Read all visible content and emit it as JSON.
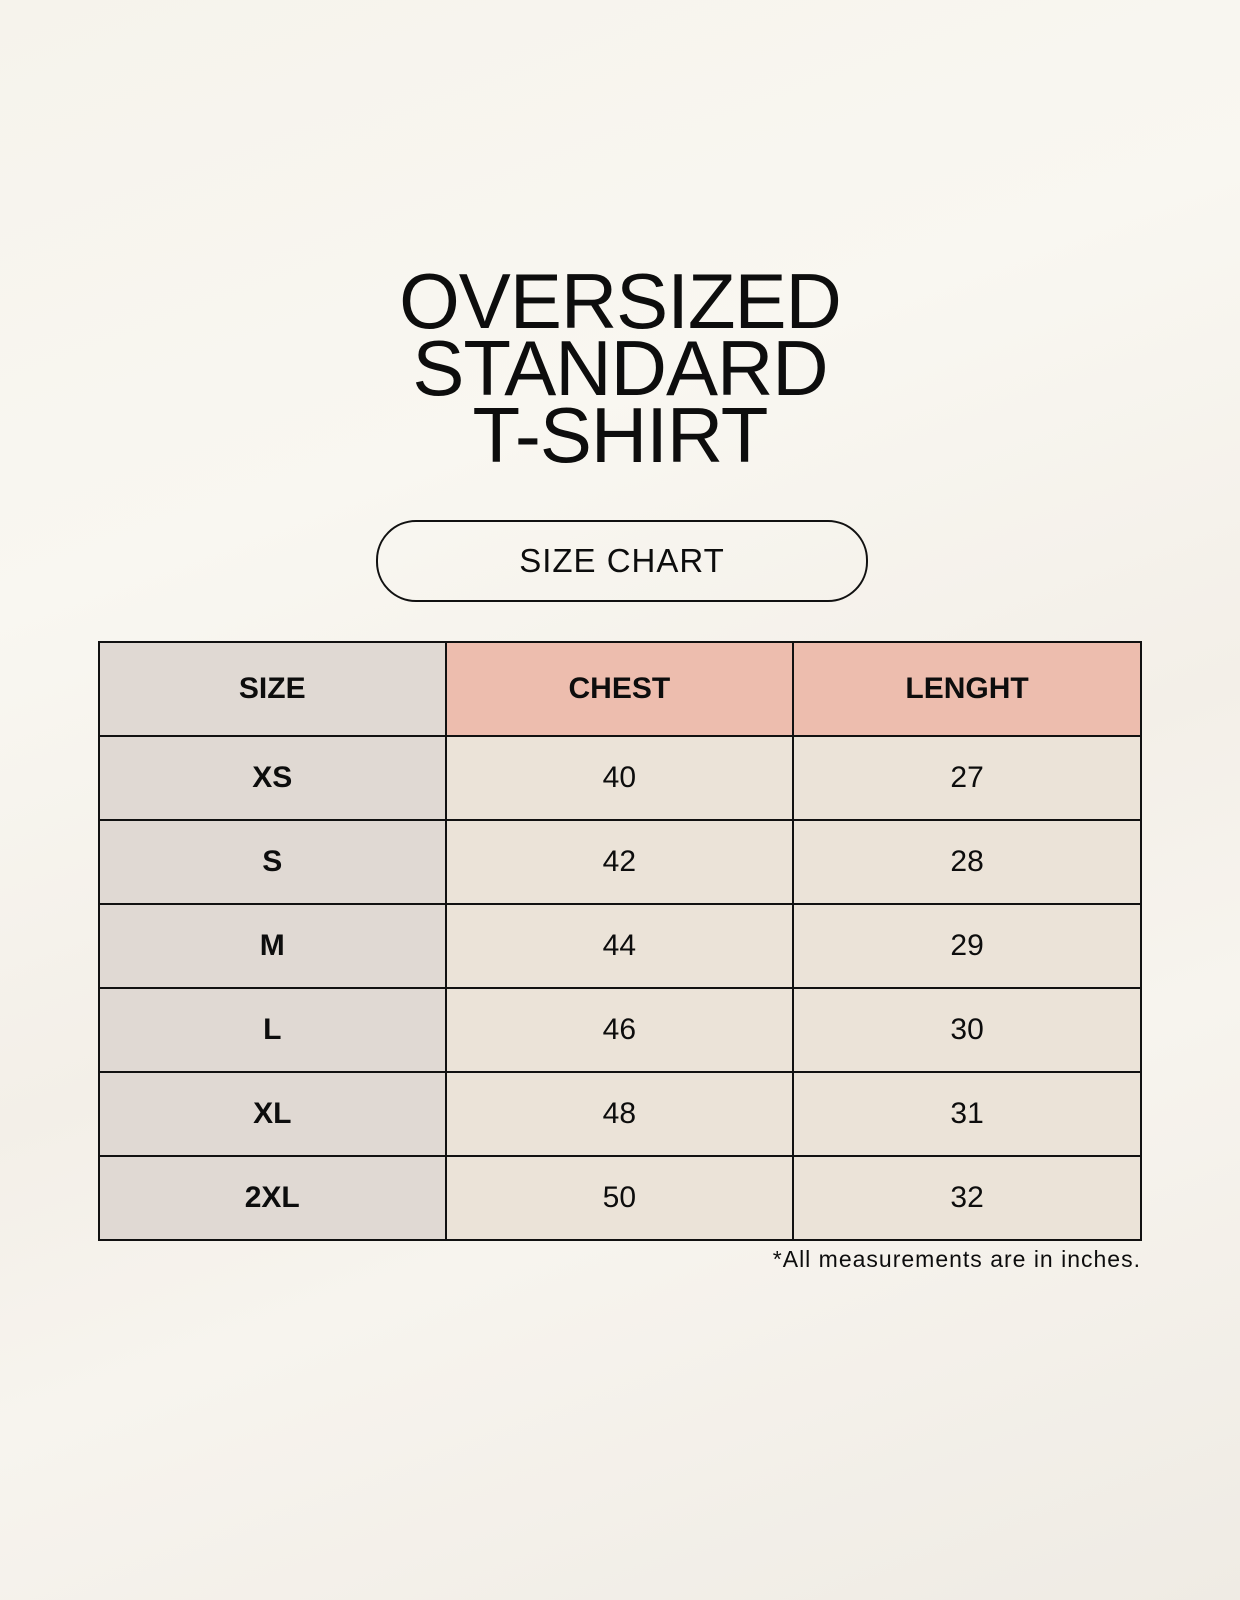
{
  "title_lines": [
    "OVERSIZED",
    "STANDARD",
    "T-SHIRT"
  ],
  "badge": "SIZE CHART",
  "table": {
    "headers": [
      "SIZE",
      "CHEST",
      "LENGHT"
    ],
    "rows": [
      [
        "XS",
        "40",
        "27"
      ],
      [
        "S",
        "42",
        "28"
      ],
      [
        "M",
        "44",
        "29"
      ],
      [
        "L",
        "46",
        "30"
      ],
      [
        "XL",
        "48",
        "31"
      ],
      [
        "2XL",
        "50",
        "32"
      ]
    ]
  },
  "footnote": "*All measurements are in inches.",
  "colors": {
    "header_accent": "#edbdae",
    "size_column": "#e0d9d3",
    "cells": "#ebe3d8"
  }
}
